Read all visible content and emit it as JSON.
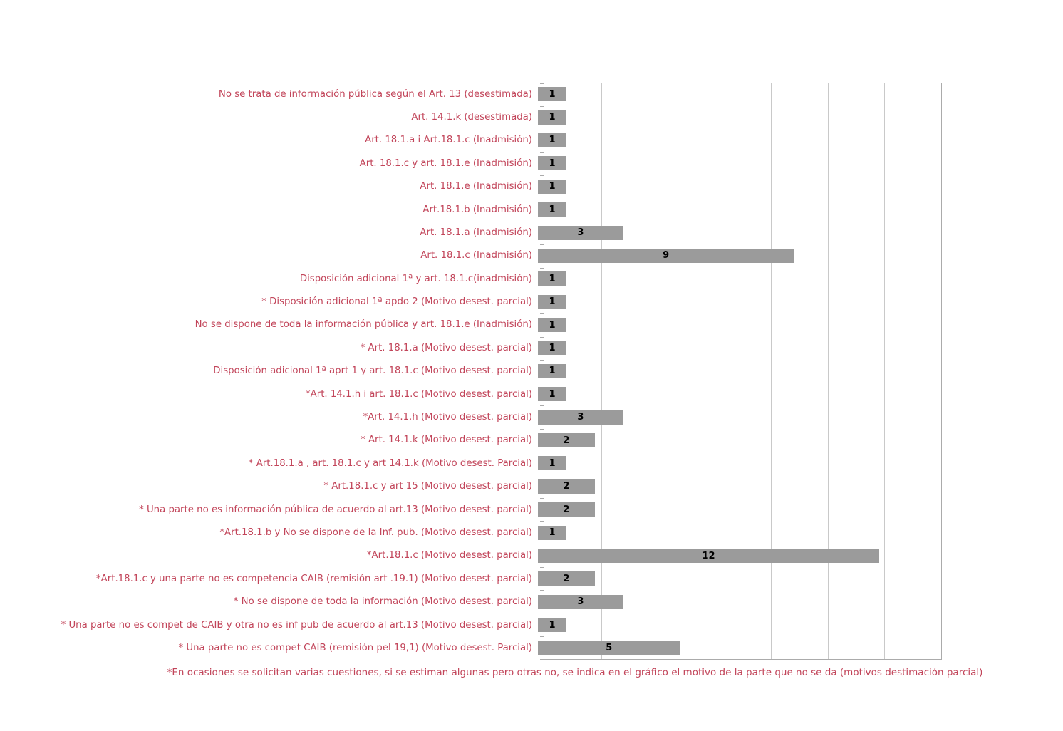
{
  "chart_data": {
    "type": "bar",
    "orientation": "horizontal",
    "title": "",
    "xlabel": "",
    "ylabel": "",
    "xlim": [
      0,
      14
    ],
    "xticks": [
      0,
      2,
      4,
      6,
      8,
      10,
      12,
      14
    ],
    "grid": "vertical",
    "legend": "none",
    "bar_color": "#9b9b9b",
    "category_label_color": "#c2455a",
    "value_label_color": "#000000",
    "gridline_color": "#c9c9c9",
    "plot_border_color": "#ababab",
    "categories": [
      "No se trata de información pública según el Art. 13 (desestimada)",
      "Art. 14.1.k (desestimada)",
      "Art. 18.1.a  i  Art.18.1.c  (Inadmisión)",
      "Art. 18.1.c y art. 18.1.e  (Inadmisión)",
      "Art. 18.1.e (Inadmisión)",
      "Art.18.1.b (Inadmisión)",
      "Art. 18.1.a (Inadmisión)",
      "Art. 18.1.c (Inadmisión)",
      "Disposición adicional 1ª  y art. 18.1.c(inadmisión)",
      "* Disposición adicional 1ª apdo 2 (Motivo desest. parcial)",
      "No se dispone de toda la información pública y art. 18.1.e  (Inadmisión)",
      "* Art. 18.1.a (Motivo desest. parcial)",
      "Disposición adicional 1ª aprt 1  y art. 18.1.c (Motivo desest. parcial)",
      "*Art. 14.1.h  i art. 18.1.c (Motivo desest. parcial)",
      "*Art. 14.1.h (Motivo desest. parcial)",
      "* Art. 14.1.k  (Motivo desest. parcial)",
      "* Art.18.1.a , art. 18.1.c y art 14.1.k (Motivo desest. Parcial)",
      "* Art.18.1.c y art 15 (Motivo desest. parcial)",
      "* Una parte no es información pública de acuerdo al art.13  (Motivo desest. parcial)",
      "*Art.18.1.b y No se dispone de la Inf. pub. (Motivo desest. parcial)",
      "*Art.18.1.c (Motivo desest. parcial)",
      "*Art.18.1.c y una parte no es competencia CAIB (remisión art .19.1) (Motivo desest. parcial)",
      "* No se dispone de toda la información (Motivo desest. parcial)",
      "* Una parte no es compet de CAIB y otra no es  inf pub de acuerdo al art.13  (Motivo desest. parcial)",
      "* Una parte no es compet CAIB (remisión pel 19,1) (Motivo desest. Parcial)"
    ],
    "values": [
      1,
      1,
      1,
      1,
      1,
      1,
      3,
      9,
      1,
      1,
      1,
      1,
      1,
      1,
      3,
      2,
      1,
      2,
      2,
      1,
      12,
      2,
      3,
      1,
      5
    ],
    "footnote": "*En ocasiones se solicitan varias cuestiones, si se estiman algunas pero otras no, se indica en el gráfico el motivo de la parte que no se da (motivos destimación parcial)"
  }
}
